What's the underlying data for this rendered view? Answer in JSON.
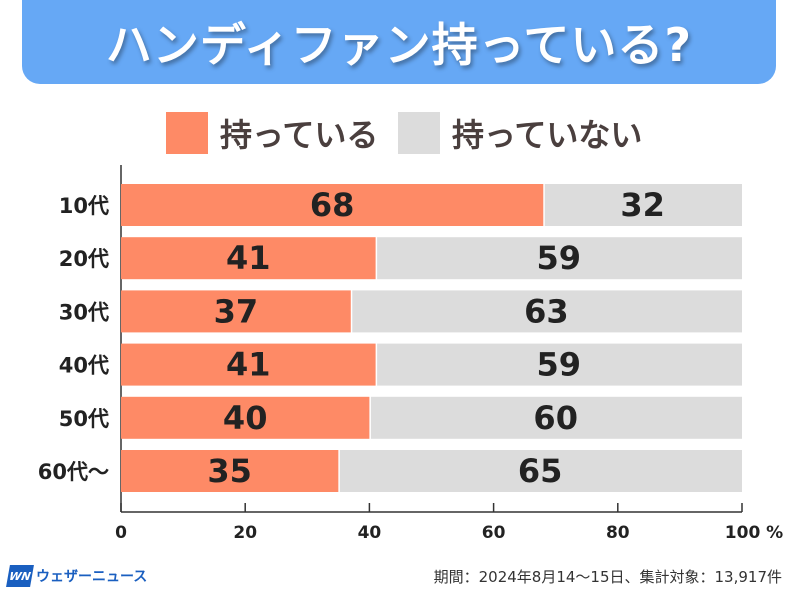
{
  "title": "ハンディファン持っている?",
  "legend": [
    {
      "label": "持っている",
      "color": "#fe8a66"
    },
    {
      "label": "持っていない",
      "color": "#dcdcdc"
    }
  ],
  "footer": {
    "logo_mark": "WN",
    "logo_text": "ウェザーニュース",
    "note": "期間：2024年8月14〜15日、集計対象：13,917件"
  },
  "chart_data": {
    "type": "bar",
    "orientation": "horizontal",
    "stacked": true,
    "title": "ハンディファン持っている?",
    "categories": [
      "10代",
      "20代",
      "30代",
      "40代",
      "50代",
      "60代〜"
    ],
    "series": [
      {
        "name": "持っている",
        "values": [
          68,
          41,
          37,
          41,
          40,
          35
        ],
        "color": "#fe8a66"
      },
      {
        "name": "持っていない",
        "values": [
          32,
          59,
          63,
          59,
          60,
          65
        ],
        "color": "#dcdcdc"
      }
    ],
    "xlim": [
      0,
      100
    ],
    "xticks": [
      0,
      20,
      40,
      60,
      80,
      100
    ],
    "xtick_labels": [
      "0",
      "20",
      "40",
      "60",
      "80",
      "100 %"
    ],
    "xlabel": "",
    "ylabel": "",
    "legend_position": "top",
    "grid": false
  }
}
